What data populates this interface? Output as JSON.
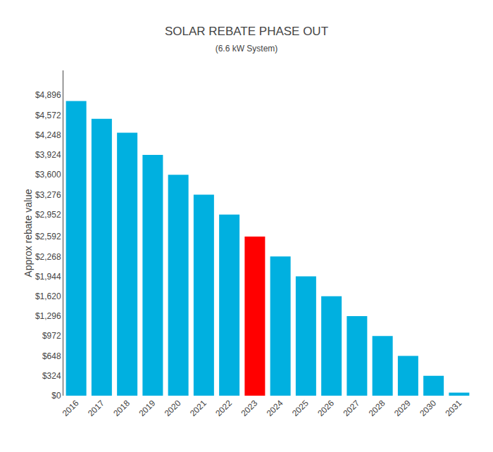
{
  "chart_data": {
    "type": "bar",
    "title": "SOLAR REBATE PHASE OUT",
    "subtitle": "(6.6 kW System)",
    "ylabel": "Approx rebate value",
    "categories": [
      "2016",
      "2017",
      "2018",
      "2019",
      "2020",
      "2021",
      "2022",
      "2023",
      "2024",
      "2025",
      "2026",
      "2027",
      "2028",
      "2029",
      "2030",
      "2031"
    ],
    "values": [
      4800,
      4512,
      4284,
      3924,
      3600,
      3276,
      2952,
      2592,
      2268,
      1944,
      1620,
      1296,
      972,
      648,
      324,
      50
    ],
    "colors": [
      "#00b0e0",
      "#00b0e0",
      "#00b0e0",
      "#00b0e0",
      "#00b0e0",
      "#00b0e0",
      "#00b0e0",
      "#ff0000",
      "#00b0e0",
      "#00b0e0",
      "#00b0e0",
      "#00b0e0",
      "#00b0e0",
      "#00b0e0",
      "#00b0e0",
      "#00b0e0"
    ],
    "ylim": [
      0,
      5300
    ],
    "yticks": [
      {
        "value": 0,
        "label": "$0"
      },
      {
        "value": 324,
        "label": "$324"
      },
      {
        "value": 648,
        "label": "$648"
      },
      {
        "value": 972,
        "label": "$972"
      },
      {
        "value": 1296,
        "label": "$1,296"
      },
      {
        "value": 1620,
        "label": "$1,620"
      },
      {
        "value": 1944,
        "label": "$1,944"
      },
      {
        "value": 2268,
        "label": "$2,268"
      },
      {
        "value": 2592,
        "label": "$2,592"
      },
      {
        "value": 2952,
        "label": "$2,952"
      },
      {
        "value": 3276,
        "label": "$3,276"
      },
      {
        "value": 3600,
        "label": "$3,600"
      },
      {
        "value": 3924,
        "label": "$3,924"
      },
      {
        "value": 4248,
        "label": "$4,248"
      },
      {
        "value": 4572,
        "label": "$4,572"
      },
      {
        "value": 4896,
        "label": "$4,896"
      }
    ],
    "grid": false
  }
}
